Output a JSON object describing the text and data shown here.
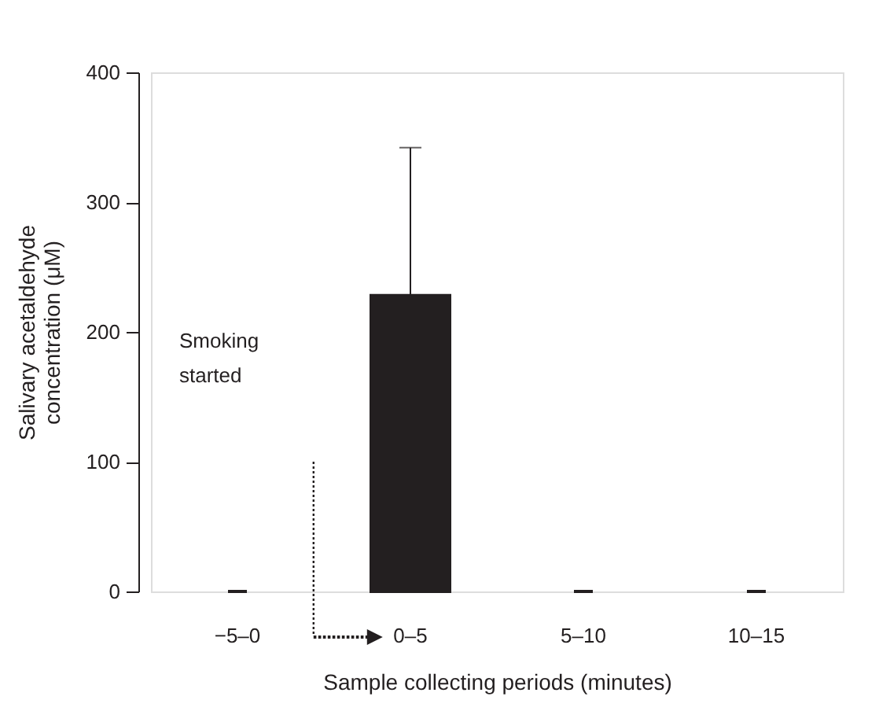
{
  "chart_data": {
    "type": "bar",
    "categories": [
      "−5–0",
      "0–5",
      "5–10",
      "10–15"
    ],
    "values": [
      0,
      228,
      0,
      0
    ],
    "errors": [
      null,
      [
        228,
        342
      ],
      null,
      null
    ],
    "color": "#231f20",
    "xlabel": "Sample collecting periods (minutes)",
    "ylabel": "Salivary acetaldehyde\nconcentration (μM)",
    "ylim": [
      0,
      400
    ],
    "yticks": [
      0,
      100,
      200,
      300,
      400
    ],
    "grid": false,
    "annotations": [
      "Smoking\nstarted"
    ]
  }
}
